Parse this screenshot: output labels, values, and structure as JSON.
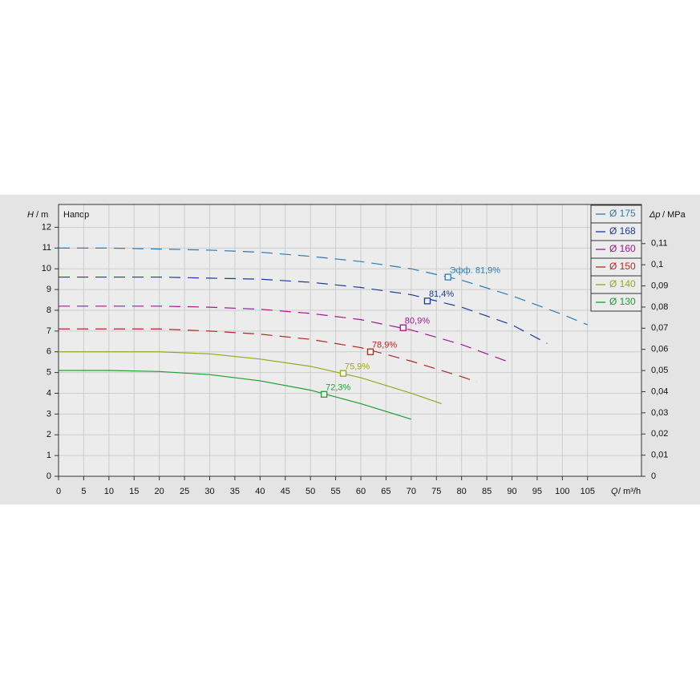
{
  "chart_data": {
    "type": "line",
    "title": "Напор",
    "x_label": {
      "symbol": "Q",
      "unit": "/ m³/h"
    },
    "y_label": {
      "symbol": "H",
      "unit": "/ m"
    },
    "y2_label": {
      "symbol": "Δp",
      "unit": "/ MPa"
    },
    "xlim": [
      0,
      115.7
    ],
    "ylim": [
      0,
      13.1
    ],
    "y2lim": [
      0,
      0.1285
    ],
    "xticks": [
      0,
      5,
      10,
      15,
      20,
      25,
      30,
      35,
      40,
      45,
      50,
      55,
      60,
      65,
      70,
      75,
      80,
      85,
      90,
      95,
      100,
      105
    ],
    "yticks": [
      0,
      1,
      2,
      3,
      4,
      5,
      6,
      7,
      8,
      9,
      10,
      11,
      12
    ],
    "y2ticks": [
      0,
      {
        "value": 0.01,
        "label": "0,01"
      },
      {
        "value": 0.02,
        "label": "0,02"
      },
      {
        "value": 0.03,
        "label": "0,03"
      },
      {
        "value": 0.04,
        "label": "0,04"
      },
      {
        "value": 0.05,
        "label": "0,05"
      },
      {
        "value": 0.06,
        "label": "0,06"
      },
      {
        "value": 0.07,
        "label": "0,07"
      },
      {
        "value": 0.08,
        "label": "0,08"
      },
      {
        "value": 0.09,
        "label": "0,09"
      },
      {
        "value": 0.1,
        "label": "0,1"
      },
      {
        "value": 0.11,
        "label": "0,11"
      }
    ],
    "grid": true,
    "legend": "top-right",
    "series": [
      {
        "name": "Ø 175",
        "color": "#2b7bb4",
        "style": "dashed",
        "x": [
          0,
          10,
          20,
          30,
          40,
          50,
          60,
          70,
          80,
          90,
          100,
          105
        ],
        "values": [
          11.0,
          11.0,
          10.95,
          10.9,
          10.8,
          10.6,
          10.35,
          10.0,
          9.45,
          8.7,
          7.8,
          7.3
        ],
        "point": {
          "x": 77.3,
          "y": 9.6,
          "label": "Эфф.  81,9%"
        }
      },
      {
        "name": "Ø 168",
        "color": "#1b3a9e",
        "style": "dashed",
        "x": [
          0,
          10,
          20,
          30,
          40,
          50,
          60,
          70,
          80,
          90,
          97
        ],
        "values": [
          9.6,
          9.6,
          9.6,
          9.55,
          9.5,
          9.35,
          9.1,
          8.75,
          8.15,
          7.3,
          6.4
        ],
        "point": {
          "x": 73.2,
          "y": 8.45,
          "label": "81,4%"
        }
      },
      {
        "name": "Ø 160",
        "color": "#a3168e",
        "style": "dashed",
        "x": [
          0,
          10,
          20,
          30,
          40,
          50,
          60,
          70,
          80,
          90
        ],
        "values": [
          8.2,
          8.2,
          8.2,
          8.15,
          8.05,
          7.85,
          7.55,
          7.05,
          6.35,
          5.45
        ],
        "point": {
          "x": 68.4,
          "y": 7.16,
          "label": "80,9%"
        }
      },
      {
        "name": "Ø 150",
        "color": "#b2281f",
        "style": "dashed",
        "x": [
          0,
          10,
          20,
          30,
          40,
          50,
          60,
          70,
          80,
          83
        ],
        "values": [
          7.1,
          7.1,
          7.1,
          7.0,
          6.85,
          6.6,
          6.2,
          5.55,
          4.8,
          4.55
        ],
        "point": {
          "x": 61.9,
          "y": 6.0,
          "label": "78,9%"
        }
      },
      {
        "name": "Ø 140",
        "color": "#9aa51c",
        "style": "solid",
        "x": [
          0,
          10,
          20,
          30,
          40,
          50,
          60,
          70,
          76
        ],
        "values": [
          6.0,
          6.0,
          6.0,
          5.9,
          5.65,
          5.3,
          4.75,
          4.0,
          3.5
        ],
        "point": {
          "x": 56.5,
          "y": 4.96,
          "label": "75,9%"
        }
      },
      {
        "name": "Ø 130",
        "color": "#1f9e30",
        "style": "solid",
        "x": [
          0,
          10,
          20,
          30,
          40,
          50,
          60,
          70
        ],
        "values": [
          5.1,
          5.1,
          5.05,
          4.9,
          4.6,
          4.15,
          3.5,
          2.75
        ],
        "point": {
          "x": 52.7,
          "y": 3.95,
          "label": "72,3%"
        }
      }
    ]
  }
}
